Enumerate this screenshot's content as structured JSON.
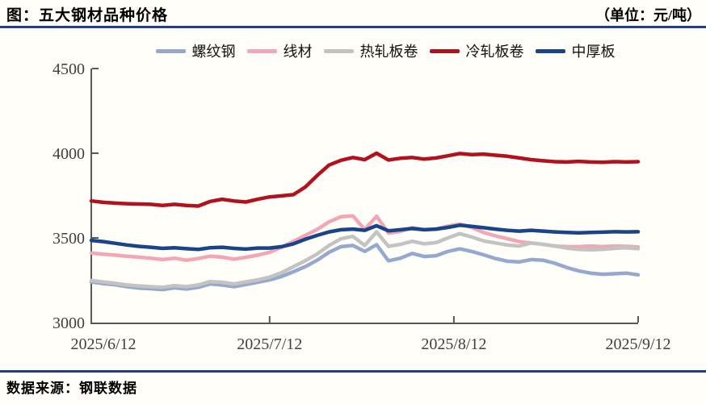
{
  "header": {
    "title": "图：五大钢材品种价格",
    "unit": "（单位：元/吨）"
  },
  "footer": {
    "source": "数据来源：钢联数据"
  },
  "colors": {
    "rule_navy": "#1F3F87",
    "axis": "#595959",
    "tick_label": "#3F3F3F",
    "background": "#FFFEF9"
  },
  "chart_data": {
    "type": "line",
    "title": "五大钢材品种价格",
    "unit": "元/吨",
    "grid": false,
    "legend_position": "top-center",
    "x_axis": {
      "start_date": "2025/6/12",
      "end_date": "2025/9/12",
      "sample_step_days": 2,
      "tick_days": [
        0,
        30,
        61,
        92
      ],
      "tick_labels": [
        "2025/6/12",
        "2025/7/12",
        "2025/8/12",
        "2025/9/12"
      ]
    },
    "y_axis": {
      "min": 3000,
      "max": 4500,
      "ticks": [
        3000,
        3500,
        4000,
        4500
      ]
    },
    "series": [
      {
        "name": "螺纹钢",
        "key": "rebar",
        "color": "#95A9CE",
        "values": [
          3240,
          3230,
          3224,
          3212,
          3204,
          3200,
          3195,
          3205,
          3198,
          3208,
          3228,
          3222,
          3212,
          3225,
          3238,
          3252,
          3272,
          3300,
          3330,
          3368,
          3415,
          3448,
          3455,
          3420,
          3460,
          3365,
          3380,
          3408,
          3390,
          3395,
          3420,
          3435,
          3420,
          3400,
          3378,
          3362,
          3358,
          3372,
          3368,
          3350,
          3325,
          3305,
          3292,
          3285,
          3288,
          3292,
          3282
        ]
      },
      {
        "name": "线材",
        "key": "wire-rod",
        "color": "#F3A6B3",
        "values": [
          3410,
          3404,
          3398,
          3392,
          3386,
          3380,
          3372,
          3380,
          3368,
          3378,
          3392,
          3386,
          3375,
          3385,
          3398,
          3415,
          3445,
          3480,
          3515,
          3550,
          3595,
          3625,
          3630,
          3550,
          3628,
          3528,
          3538,
          3560,
          3548,
          3552,
          3570,
          3582,
          3562,
          3532,
          3512,
          3495,
          3478,
          3470,
          3462,
          3452,
          3448,
          3448,
          3452,
          3448,
          3452,
          3450,
          3446
        ]
      },
      {
        "name": "热轧板卷",
        "key": "hot-rolled-coil",
        "color": "#C3C3C3",
        "values": [
          3248,
          3240,
          3232,
          3222,
          3216,
          3212,
          3208,
          3218,
          3212,
          3222,
          3242,
          3238,
          3228,
          3240,
          3252,
          3268,
          3295,
          3330,
          3365,
          3405,
          3455,
          3495,
          3509,
          3455,
          3535,
          3450,
          3462,
          3480,
          3465,
          3472,
          3500,
          3525,
          3505,
          3482,
          3470,
          3458,
          3452,
          3470,
          3462,
          3452,
          3440,
          3432,
          3430,
          3432,
          3438,
          3442,
          3436
        ]
      },
      {
        "name": "冷轧板卷",
        "key": "cold-rolled-coil",
        "color": "#B2121E",
        "values": [
          3718,
          3710,
          3705,
          3702,
          3700,
          3698,
          3692,
          3698,
          3692,
          3688,
          3715,
          3728,
          3718,
          3712,
          3728,
          3742,
          3748,
          3755,
          3800,
          3868,
          3930,
          3958,
          3975,
          3962,
          4000,
          3960,
          3970,
          3975,
          3965,
          3972,
          3985,
          3998,
          3992,
          3995,
          3988,
          3982,
          3972,
          3962,
          3955,
          3950,
          3948,
          3952,
          3948,
          3946,
          3950,
          3948,
          3950
        ]
      },
      {
        "name": "中厚板",
        "key": "medium-plate",
        "color": "#1A4489",
        "values": [
          3485,
          3478,
          3468,
          3458,
          3450,
          3445,
          3438,
          3442,
          3436,
          3432,
          3442,
          3445,
          3438,
          3434,
          3440,
          3440,
          3448,
          3465,
          3492,
          3515,
          3535,
          3548,
          3552,
          3545,
          3572,
          3542,
          3548,
          3555,
          3548,
          3552,
          3562,
          3575,
          3568,
          3560,
          3552,
          3545,
          3540,
          3545,
          3540,
          3535,
          3532,
          3530,
          3532,
          3534,
          3536,
          3535,
          3536
        ]
      }
    ]
  }
}
